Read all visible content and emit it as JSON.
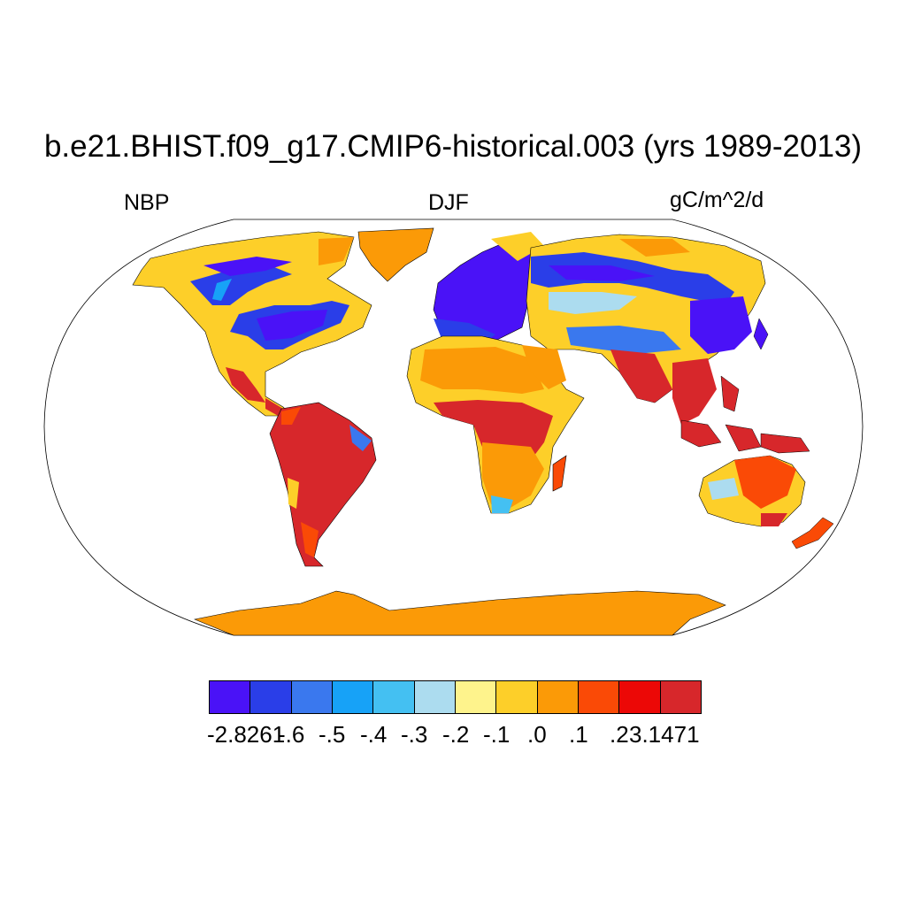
{
  "title": "b.e21.BHIST.f09_g17.CMIP6-historical.003 (yrs 1989-2013)",
  "variable": "NBP",
  "season": "DJF",
  "units": "gC/m^2/d",
  "colorbar": {
    "colors": [
      "#4a12f7",
      "#2a3ee8",
      "#3a78ee",
      "#17a2f7",
      "#44c0f2",
      "#acdcef",
      "#fef38c",
      "#fdcf29",
      "#fb9a07",
      "#fa4a06",
      "#ec0806",
      "#d7272b"
    ],
    "labels": [
      "-2.8261",
      "-.6",
      "-.5",
      "-.4",
      "-.3",
      "-.2",
      "-.1",
      ".0",
      ".1",
      ".2",
      "3.1471"
    ]
  },
  "map": {
    "projection": "Robinson",
    "ocean_color": "#ffffff",
    "antarctica_color": "#fb9a07"
  }
}
